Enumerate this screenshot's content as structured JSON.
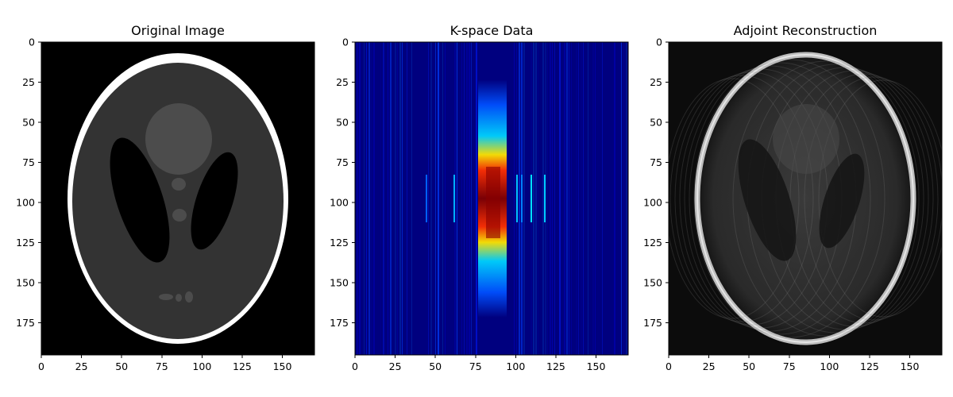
{
  "chart_data": [
    {
      "type": "heatmap",
      "title": "Original Image",
      "xlabel": "",
      "ylabel": "",
      "image_size": [
        170,
        195
      ],
      "xlim": [
        0,
        170
      ],
      "ylim": [
        195,
        0
      ],
      "x_ticks": [
        0,
        25,
        50,
        75,
        100,
        125,
        150
      ],
      "y_ticks": [
        0,
        25,
        50,
        75,
        100,
        125,
        150,
        175
      ],
      "colormap": "gray",
      "content": "shepp-logan-phantom",
      "grid": false
    },
    {
      "type": "heatmap",
      "title": "K-space Data",
      "xlabel": "",
      "ylabel": "",
      "image_size": [
        170,
        195
      ],
      "xlim": [
        0,
        170
      ],
      "ylim": [
        195,
        0
      ],
      "x_ticks": [
        0,
        25,
        50,
        75,
        100,
        125,
        150
      ],
      "y_ticks": [
        0,
        25,
        50,
        75,
        100,
        125,
        150,
        175
      ],
      "colormap": "jet",
      "content": "k-space-magnitude",
      "grid": false
    },
    {
      "type": "heatmap",
      "title": "Adjoint Reconstruction",
      "xlabel": "",
      "ylabel": "",
      "image_size": [
        170,
        195
      ],
      "xlim": [
        0,
        170
      ],
      "ylim": [
        195,
        0
      ],
      "x_ticks": [
        0,
        25,
        50,
        75,
        100,
        125,
        150
      ],
      "y_ticks": [
        0,
        25,
        50,
        75,
        100,
        125,
        150,
        175
      ],
      "colormap": "gray",
      "content": "adjoint-reconstruction",
      "grid": false
    }
  ]
}
